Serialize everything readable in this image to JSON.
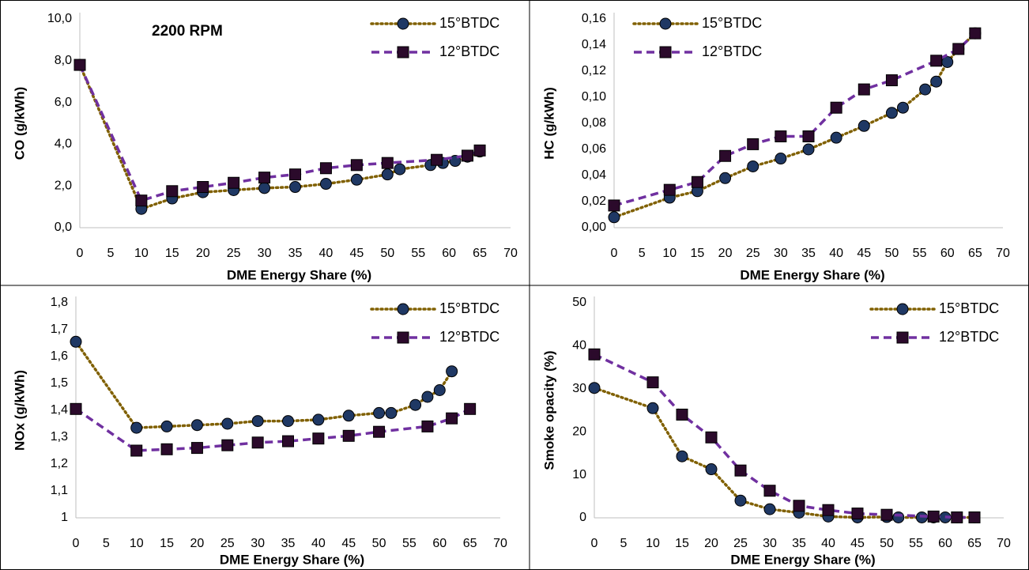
{
  "chart_data": [
    {
      "type": "line",
      "annotation": "2200 RPM",
      "x_label": "DME Energy Share (%)",
      "y_label": "CO (g/kWh)",
      "xlim": [
        0,
        70
      ],
      "xticks": [
        0,
        5,
        10,
        15,
        20,
        25,
        30,
        35,
        40,
        45,
        50,
        55,
        60,
        65,
        70
      ],
      "ylim": [
        0,
        10
      ],
      "yticks": [
        {
          "value": 0,
          "label": "0,0"
        },
        {
          "value": 2,
          "label": "2,0"
        },
        {
          "value": 4,
          "label": "4,0"
        },
        {
          "value": 6,
          "label": "6,0"
        },
        {
          "value": 8,
          "label": "8,0"
        },
        {
          "value": 10,
          "label": "10,0"
        }
      ],
      "legend": "upper right",
      "grid": false,
      "series": [
        {
          "name": "15°BTDC",
          "color": "#806000",
          "marker_color": "#1f3864",
          "line_style": "dotted",
          "marker": "circle",
          "x": [
            0,
            10,
            15,
            20,
            25,
            30,
            35,
            40,
            45,
            50,
            52,
            57,
            59,
            61,
            63,
            65
          ],
          "values": [
            7.8,
            0.9,
            1.4,
            1.7,
            1.8,
            1.9,
            1.95,
            2.1,
            2.3,
            2.55,
            2.8,
            3.0,
            3.1,
            3.2,
            3.4,
            3.65
          ]
        },
        {
          "name": "12°BTDC",
          "color": "#7030a0",
          "marker_color": "#2b0a2b",
          "line_style": "dashed",
          "marker": "square",
          "x": [
            0,
            10,
            15,
            20,
            25,
            30,
            35,
            40,
            45,
            50,
            58,
            63,
            65
          ],
          "values": [
            7.8,
            1.3,
            1.75,
            1.95,
            2.15,
            2.4,
            2.55,
            2.85,
            3.0,
            3.1,
            3.25,
            3.45,
            3.7
          ]
        }
      ]
    },
    {
      "type": "line",
      "x_label": "DME Energy Share (%)",
      "y_label": "HC (g/kWh)",
      "xlim": [
        0,
        70
      ],
      "xticks": [
        0,
        5,
        10,
        15,
        20,
        25,
        30,
        35,
        40,
        45,
        50,
        55,
        60,
        65,
        70
      ],
      "ylim": [
        0,
        0.16
      ],
      "yticks": [
        {
          "value": 0,
          "label": "0,00"
        },
        {
          "value": 0.02,
          "label": "0,02"
        },
        {
          "value": 0.04,
          "label": "0,04"
        },
        {
          "value": 0.06,
          "label": "0,06"
        },
        {
          "value": 0.08,
          "label": "0,08"
        },
        {
          "value": 0.1,
          "label": "0,10"
        },
        {
          "value": 0.12,
          "label": "0,12"
        },
        {
          "value": 0.14,
          "label": "0,14"
        },
        {
          "value": 0.16,
          "label": "0,16"
        }
      ],
      "legend": "upper left",
      "grid": false,
      "series": [
        {
          "name": "15°BTDC",
          "color": "#806000",
          "marker_color": "#1f3864",
          "line_style": "dotted",
          "marker": "circle",
          "x": [
            0,
            10,
            15,
            20,
            25,
            30,
            35,
            40,
            45,
            50,
            52,
            56,
            58,
            60,
            62,
            65
          ],
          "values": [
            0.008,
            0.023,
            0.028,
            0.038,
            0.047,
            0.053,
            0.06,
            0.069,
            0.078,
            0.088,
            0.092,
            0.106,
            0.112,
            0.127,
            0.137,
            0.149
          ]
        },
        {
          "name": "12°BTDC",
          "color": "#7030a0",
          "marker_color": "#2b0a2b",
          "line_style": "dashed",
          "marker": "square",
          "x": [
            0,
            10,
            15,
            20,
            25,
            30,
            35,
            40,
            45,
            50,
            58,
            62,
            65
          ],
          "values": [
            0.017,
            0.029,
            0.035,
            0.055,
            0.064,
            0.07,
            0.07,
            0.092,
            0.106,
            0.113,
            0.128,
            0.137,
            0.149
          ]
        }
      ]
    },
    {
      "type": "line",
      "x_label": "DME Energy Share (%)",
      "y_label": "NOx (g/kWh)",
      "xlim": [
        0,
        70
      ],
      "xticks": [
        0,
        5,
        10,
        15,
        20,
        25,
        30,
        35,
        40,
        45,
        50,
        55,
        60,
        65,
        70
      ],
      "ylim": [
        1,
        1.8
      ],
      "yticks": [
        1,
        {
          "value": 1.1,
          "label": "1,1"
        },
        {
          "value": 1.2,
          "label": "1,2"
        },
        {
          "value": 1.3,
          "label": "1,3"
        },
        {
          "value": 1.4,
          "label": "1,4"
        },
        {
          "value": 1.5,
          "label": "1,5"
        },
        {
          "value": 1.6,
          "label": "1,6"
        },
        {
          "value": 1.7,
          "label": "1,7"
        },
        {
          "value": 1.8,
          "label": "1,8"
        }
      ],
      "legend": "upper right",
      "grid": false,
      "series": [
        {
          "name": "15°BTDC",
          "color": "#806000",
          "marker_color": "#1f3864",
          "line_style": "dotted",
          "marker": "circle",
          "x": [
            0,
            10,
            15,
            20,
            25,
            30,
            35,
            40,
            45,
            50,
            52,
            56,
            58,
            60,
            62
          ],
          "values": [
            1.655,
            1.335,
            1.34,
            1.345,
            1.35,
            1.36,
            1.36,
            1.365,
            1.38,
            1.39,
            1.39,
            1.42,
            1.45,
            1.475,
            1.545
          ]
        },
        {
          "name": "12°BTDC",
          "color": "#7030a0",
          "marker_color": "#2b0a2b",
          "line_style": "dashed",
          "marker": "square",
          "x": [
            0,
            10,
            15,
            20,
            25,
            30,
            35,
            40,
            45,
            50,
            58,
            62,
            65
          ],
          "values": [
            1.405,
            1.25,
            1.255,
            1.26,
            1.27,
            1.28,
            1.285,
            1.295,
            1.305,
            1.32,
            1.34,
            1.37,
            1.405
          ]
        }
      ]
    },
    {
      "type": "line",
      "x_label": "DME Energy Share (%)",
      "y_label": "Smoke opacity (%)",
      "xlim": [
        0,
        70
      ],
      "xticks": [
        0,
        5,
        10,
        15,
        20,
        25,
        30,
        35,
        40,
        45,
        50,
        55,
        60,
        65,
        70
      ],
      "ylim": [
        0,
        50
      ],
      "yticks": [
        0,
        10,
        20,
        30,
        40,
        50
      ],
      "legend": "upper right",
      "grid": false,
      "series": [
        {
          "name": "15°BTDC",
          "color": "#806000",
          "marker_color": "#1f3864",
          "line_style": "dotted",
          "marker": "circle",
          "x": [
            0,
            10,
            15,
            20,
            25,
            30,
            35,
            40,
            45,
            50,
            52,
            56,
            58,
            60,
            62,
            65
          ],
          "values": [
            30.2,
            25.5,
            14.3,
            11.3,
            4.0,
            2.0,
            1.2,
            0.3,
            0.1,
            0.2,
            0.1,
            0.1,
            0.1,
            0.1,
            0.1,
            0.1
          ]
        },
        {
          "name": "12°BTDC",
          "color": "#7030a0",
          "marker_color": "#2b0a2b",
          "line_style": "dashed",
          "marker": "square",
          "x": [
            0,
            10,
            15,
            20,
            25,
            30,
            35,
            40,
            45,
            50,
            58,
            62,
            65
          ],
          "values": [
            38,
            31.5,
            24,
            18.7,
            11,
            6.3,
            2.8,
            1.8,
            1.0,
            0.7,
            0.3,
            0.1,
            0.1
          ]
        }
      ]
    }
  ]
}
